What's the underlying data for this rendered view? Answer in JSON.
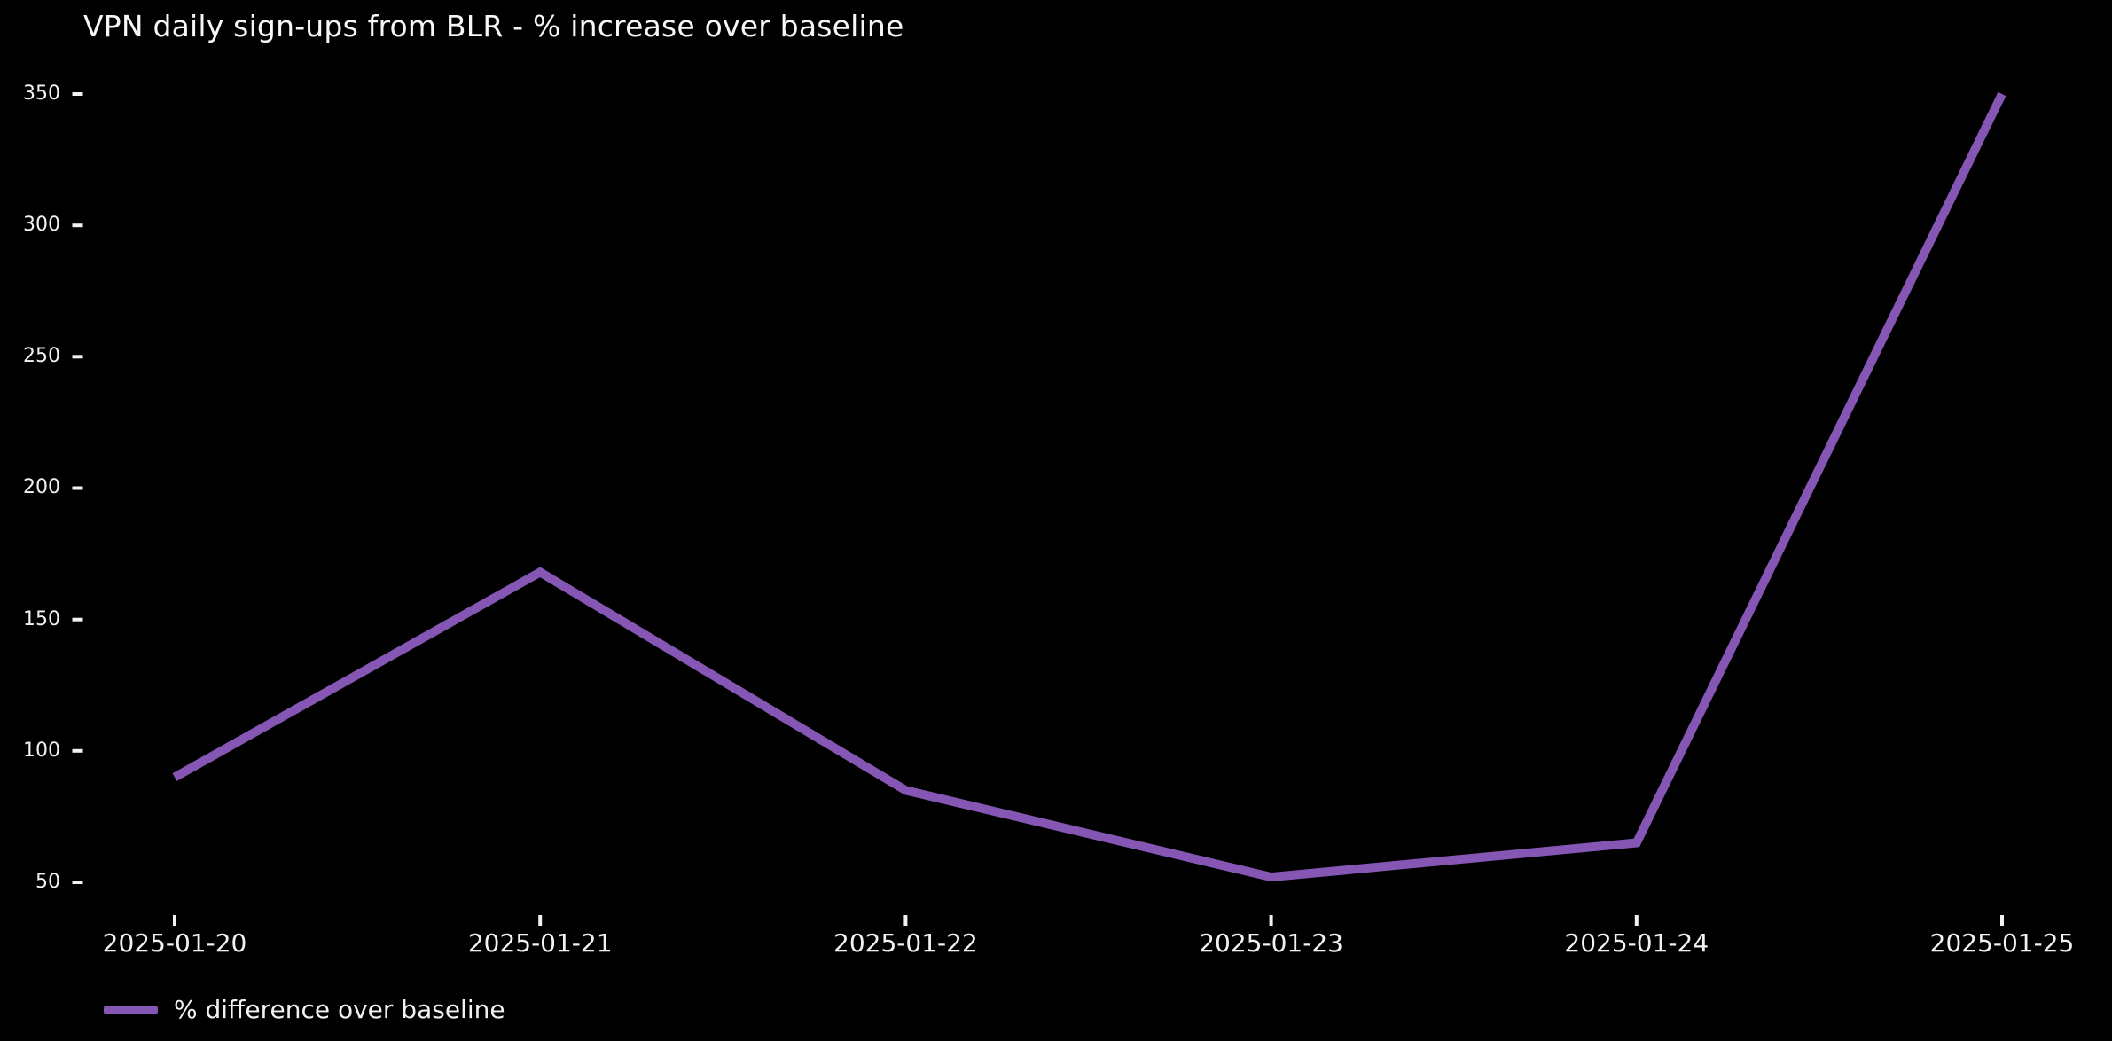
{
  "chart_data": {
    "type": "line",
    "title": "VPN daily sign-ups from BLR - % increase over baseline",
    "categories": [
      "2025-01-20",
      "2025-01-21",
      "2025-01-22",
      "2025-01-23",
      "2025-01-24",
      "2025-01-25"
    ],
    "series": [
      {
        "name": "% difference over baseline",
        "values": [
          90,
          168,
          85,
          52,
          65,
          350
        ]
      }
    ],
    "xlabel": "",
    "ylabel": "",
    "yticks": [
      50,
      100,
      150,
      200,
      250,
      300,
      350
    ],
    "ylim": [
      35,
      360
    ],
    "grid": false,
    "legend_position": "lower-left",
    "colors": {
      "background": "#000000",
      "text": "#f2f2f2",
      "line": "#8556b4"
    }
  }
}
